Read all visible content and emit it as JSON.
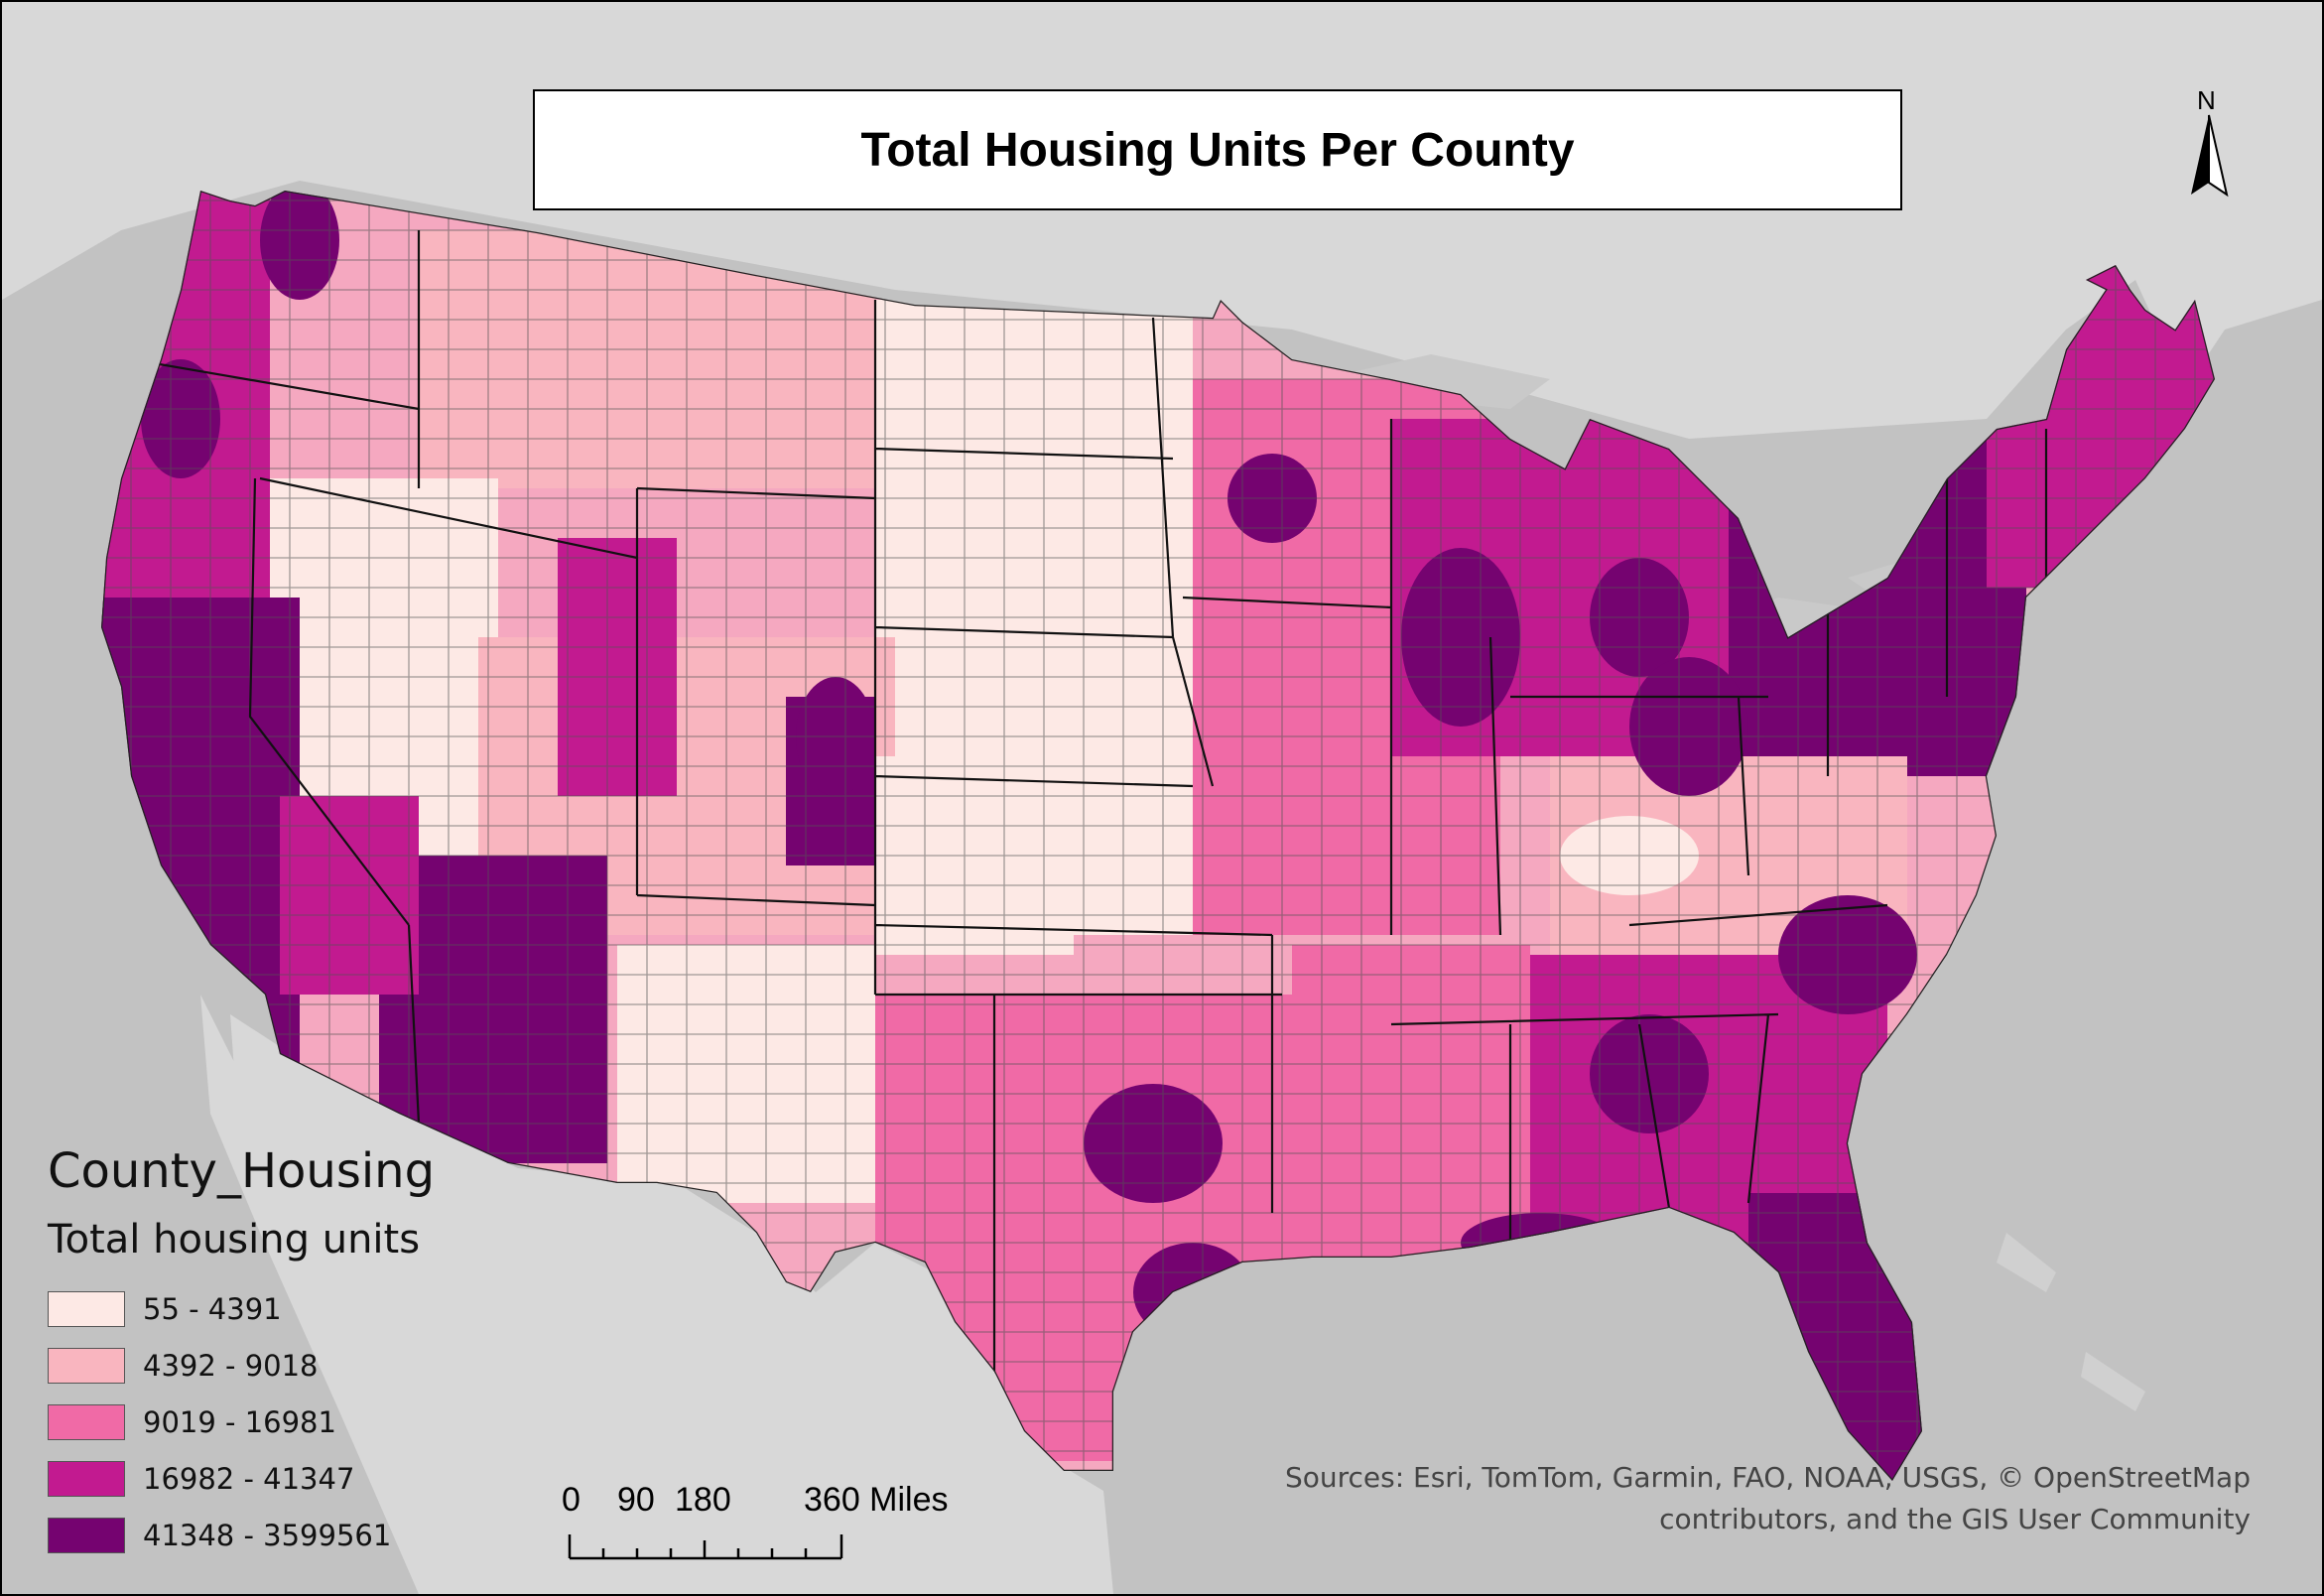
{
  "map": {
    "title": "Total Housing Units Per County",
    "north_label": "N",
    "basemap": {
      "land_color": "#d6d6d6",
      "water_color": "#c2c2c2",
      "lakes_color": "#c9c9c9"
    },
    "legend": {
      "layer_name": "County_Housing",
      "field_name": "Total housing units",
      "classes": [
        {
          "label": "55 - 4391",
          "color": "#fde9e5"
        },
        {
          "label": "4392 - 9018",
          "color": "#f9b5bf"
        },
        {
          "label": "9019 - 16981",
          "color": "#f06aa6"
        },
        {
          "label": "16982 - 41347",
          "color": "#c21a90"
        },
        {
          "label": "41348 - 3599561",
          "color": "#750370"
        }
      ]
    },
    "scale_bar": {
      "labels": [
        "0",
        "90",
        "180",
        "360 Miles"
      ]
    },
    "sources": {
      "line1": "Sources: Esri, TomTom, Garmin, FAO, NOAA, USGS, © OpenStreetMap",
      "line2": "contributors, and the GIS User Community"
    }
  }
}
